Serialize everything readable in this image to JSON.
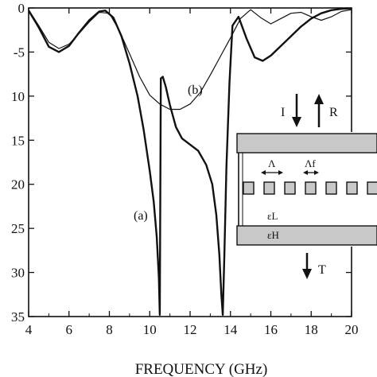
{
  "chart_data": {
    "type": "line",
    "xlabel": "FREQUENCY (GHz)",
    "ylabel": "",
    "xlim": [
      4,
      20
    ],
    "ylim": [
      -35,
      0
    ],
    "xticks": [
      4,
      6,
      8,
      10,
      12,
      14,
      16,
      18,
      20
    ],
    "xtick_labels": [
      "4",
      "6",
      "8",
      "10",
      "12",
      "14",
      "16",
      "18",
      "20"
    ],
    "yticks": [
      0,
      -5,
      -10,
      -15,
      -20,
      -25,
      -30,
      -35
    ],
    "ytick_labels": [
      "0",
      "-5",
      "10",
      "15",
      "20",
      "25",
      "30",
      "35"
    ],
    "grid": false,
    "series": [
      {
        "name": "(a)",
        "line_width": "thick",
        "x": [
          4.0,
          4.5,
          5.0,
          5.5,
          6.0,
          6.5,
          7.0,
          7.5,
          7.8,
          8.2,
          8.6,
          9.0,
          9.4,
          9.7,
          10.0,
          10.2,
          10.35,
          10.45,
          10.5,
          10.55,
          10.65,
          10.8,
          11.0,
          11.3,
          11.6,
          12.0,
          12.4,
          12.8,
          13.1,
          13.3,
          13.45,
          13.55,
          13.62,
          13.7,
          13.8,
          13.95,
          14.1,
          14.4,
          14.8,
          15.2,
          15.6,
          16.0,
          16.5,
          17.0,
          17.5,
          18.0,
          18.5,
          19.0,
          19.5,
          20.0
        ],
        "y": [
          -0.3,
          -2.2,
          -4.4,
          -5.0,
          -4.3,
          -2.8,
          -1.4,
          -0.4,
          -0.3,
          -1.1,
          -3.2,
          -6.3,
          -10.0,
          -13.8,
          -18.5,
          -22.0,
          -26.0,
          -30.5,
          -34.8,
          -8.0,
          -7.8,
          -9.0,
          -11.0,
          -13.5,
          -14.8,
          -15.5,
          -16.2,
          -17.8,
          -20.0,
          -23.5,
          -28.0,
          -32.5,
          -34.8,
          -28.0,
          -18.0,
          -8.5,
          -2.0,
          -1.0,
          -3.5,
          -5.6,
          -6.0,
          -5.4,
          -4.3,
          -3.2,
          -2.1,
          -1.2,
          -0.6,
          -0.25,
          -0.1,
          -0.05
        ]
      },
      {
        "name": "(b)",
        "line_width": "thin",
        "x": [
          4.0,
          4.5,
          5.0,
          5.5,
          6.0,
          6.5,
          7.0,
          7.5,
          8.0,
          8.5,
          9.0,
          9.5,
          10.0,
          10.5,
          11.0,
          11.5,
          12.0,
          12.5,
          13.0,
          13.5,
          14.0,
          14.5,
          15.0,
          15.5,
          16.0,
          16.5,
          17.0,
          17.5,
          18.0,
          18.5,
          19.0,
          19.5,
          20.0
        ],
        "y": [
          -0.2,
          -2.0,
          -3.9,
          -4.6,
          -4.1,
          -2.9,
          -1.6,
          -0.5,
          -0.6,
          -2.6,
          -5.2,
          -7.8,
          -9.9,
          -10.9,
          -11.5,
          -11.5,
          -10.9,
          -9.6,
          -7.6,
          -5.5,
          -3.4,
          -1.2,
          -0.2,
          -1.1,
          -1.8,
          -1.2,
          -0.6,
          -0.5,
          -1.0,
          -1.4,
          -1.0,
          -0.4,
          -0.2
        ]
      }
    ],
    "annotations": [
      {
        "text": "(a)",
        "x": 10.0,
        "y": -24.6
      },
      {
        "text": "(b)",
        "x": 10.9,
        "y": -10.3
      }
    ]
  },
  "inset": {
    "incident_label": "I",
    "reflected_label": "R",
    "transmitted_label": "T",
    "period_label": "Λ",
    "offset_label": "Λf",
    "eps_low_label": "εL",
    "eps_high_label": "εH"
  }
}
